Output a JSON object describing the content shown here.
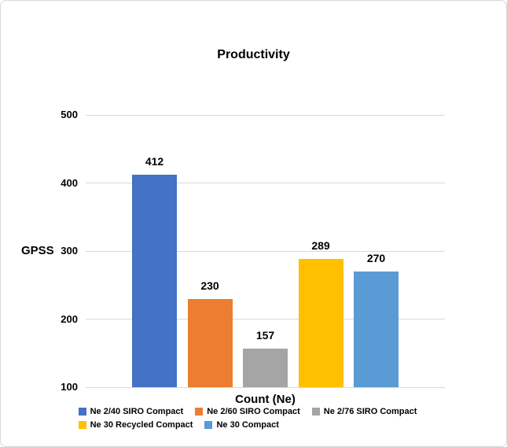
{
  "chart_data": {
    "type": "bar",
    "title": "Productivity",
    "xlabel": "Count (Ne)",
    "ylabel": "GPSS",
    "categories": [
      "Ne 2/40 SIRO Compact",
      "Ne 2/60 SIRO Compact",
      "Ne 2/76 SIRO Compact",
      "Ne 30 Recycled Compact",
      "Ne 30 Compact"
    ],
    "values": [
      412,
      230,
      157,
      289,
      270
    ],
    "colors": [
      "#4472C4",
      "#ED7D31",
      "#A5A5A5",
      "#FFC000",
      "#5B9BD5"
    ],
    "data_labels": [
      "412",
      "230",
      "157",
      "289",
      "270"
    ],
    "ylim": [
      100,
      500
    ],
    "yticks": [
      100,
      200,
      300,
      400,
      500
    ],
    "grid": true,
    "gridline_color": "#D9D9D9",
    "legend_position": "bottom",
    "text_color": "#000000"
  }
}
